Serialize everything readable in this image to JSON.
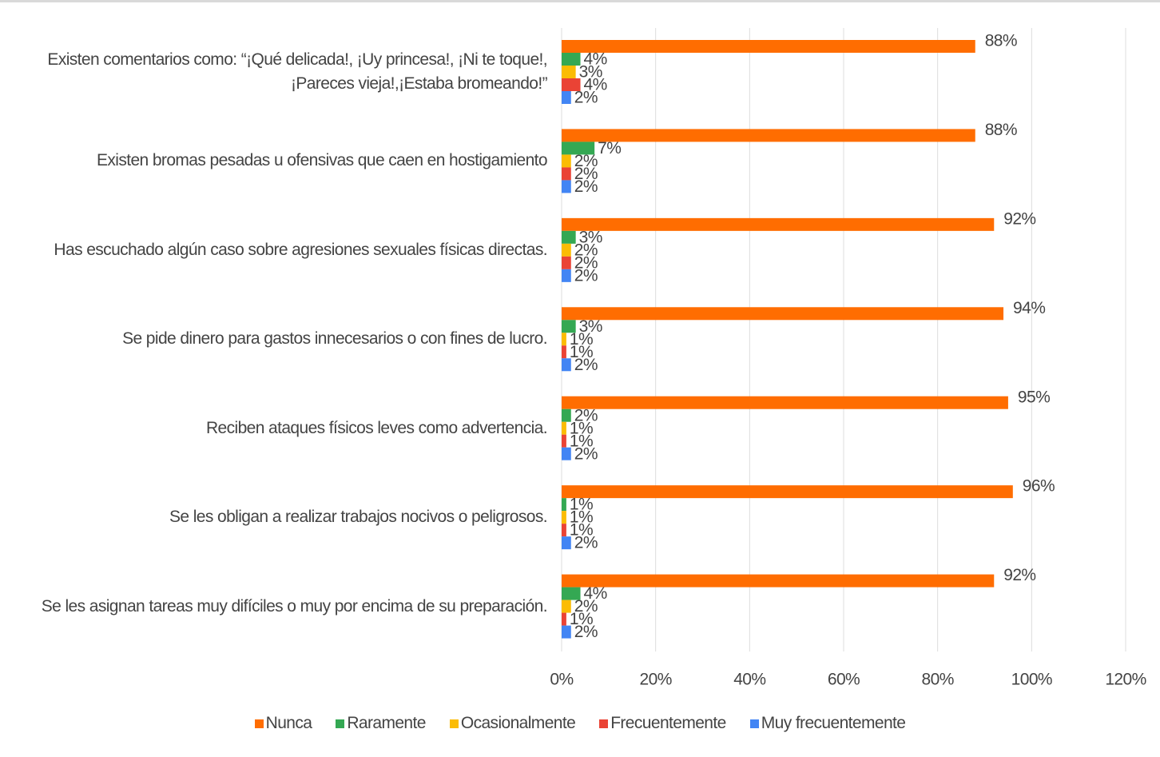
{
  "chart_data": {
    "type": "hbar",
    "categories": [
      "Existen comentarios como: “¡Qué delicada!, ¡Uy princesa!, ¡Ni te toque!, ¡Pareces vieja!,¡Estaba bromeando!”",
      "Existen bromas pesadas u ofensivas que caen en hostigamiento",
      "Has escuchado algún caso sobre agresiones sexuales físicas directas.",
      "Se pide dinero para gastos innecesarios o con fines de lucro.",
      "Reciben ataques físicos leves como advertencia.",
      "Se les obligan a realizar trabajos nocivos o peligrosos.",
      "Se les asignan tareas muy difíciles o muy por encima de su preparación."
    ],
    "series": [
      {
        "name": "Nunca",
        "color": "#ff6d01",
        "values": [
          88,
          88,
          92,
          94,
          95,
          96,
          92
        ],
        "value_labels": [
          "88%",
          "88%",
          "92%",
          "94%",
          "95%",
          "96%",
          "92%"
        ]
      },
      {
        "name": "Raramente",
        "color": "#34a853",
        "values": [
          4,
          7,
          3,
          3,
          2,
          1,
          4
        ],
        "value_labels": [
          "4%",
          "7%",
          "3%",
          "3%",
          "2%",
          "1%",
          "4%"
        ]
      },
      {
        "name": "Ocasionalmente",
        "color": "#fbbc04",
        "values": [
          3,
          2,
          2,
          1,
          1,
          1,
          2
        ],
        "value_labels": [
          "3%",
          "2%",
          "2%",
          "1%",
          "1%",
          "1%",
          "2%"
        ]
      },
      {
        "name": "Frecuentemente",
        "color": "#ea4335",
        "values": [
          4,
          2,
          2,
          1,
          1,
          1,
          1
        ],
        "value_labels": [
          "4%",
          "2%",
          "2%",
          "1%",
          "1%",
          "1%",
          "1%"
        ]
      },
      {
        "name": "Muy frecuentemente",
        "color": "#4285f4",
        "values": [
          2,
          2,
          2,
          2,
          2,
          2,
          2
        ],
        "value_labels": [
          "2%",
          "2%",
          "2%",
          "2%",
          "2%",
          "2%",
          "2%"
        ]
      }
    ],
    "xlim": [
      0,
      120
    ],
    "xticks": [
      {
        "value": 0,
        "label": "0%"
      },
      {
        "value": 20,
        "label": "20%"
      },
      {
        "value": 40,
        "label": "40%"
      },
      {
        "value": 60,
        "label": "60%"
      },
      {
        "value": 80,
        "label": "80%"
      },
      {
        "value": 100,
        "label": "100%"
      },
      {
        "value": 120,
        "label": "120%"
      }
    ],
    "grid": true,
    "legend": "bottom"
  }
}
